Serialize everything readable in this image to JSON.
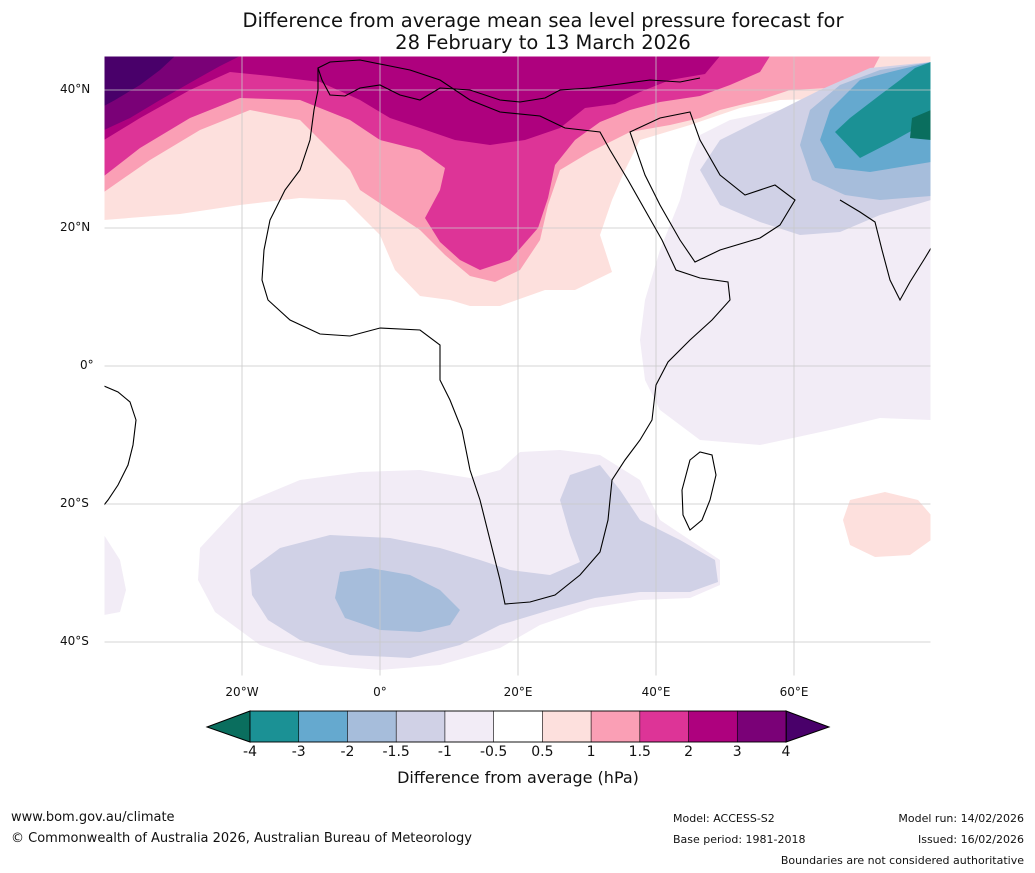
{
  "title": {
    "line1": "Difference from average mean sea level pressure forecast for",
    "line2": "28 February to 13 March 2026"
  },
  "map": {
    "lat_labels": [
      "40°N",
      "20°N",
      "0°",
      "20°S",
      "40°S"
    ],
    "lon_labels": [
      "20°W",
      "0°",
      "20°E",
      "40°E",
      "60°E"
    ]
  },
  "colorbar": {
    "ticks": [
      "-4",
      "-3",
      "-2",
      "-1.5",
      "-1",
      "-0.5",
      "0.5",
      "1",
      "1.5",
      "2",
      "3",
      "4"
    ],
    "colors": [
      "#1b9195",
      "#65a9cf",
      "#a6bddb",
      "#d0d1e6",
      "#f2ecf6",
      "#ffffff",
      "#fde0dd",
      "#fa9fb5",
      "#dd3497",
      "#ae017e",
      "#7a0177"
    ],
    "under_color": "#0a6e5e",
    "over_color": "#49006a",
    "label": "Difference from average (hPa)"
  },
  "footer": {
    "website": "www.bom.gov.au/climate",
    "copyright": "© Commonwealth of Australia 2026, Australian Bureau of Meteorology",
    "model": "Model: ACCESS-S2",
    "base_period": "Base period: 1981-2018",
    "model_run": "Model run: 14/02/2026",
    "issued": "Issued: 16/02/2026",
    "disclaimer": "Boundaries are not considered authoritative"
  }
}
